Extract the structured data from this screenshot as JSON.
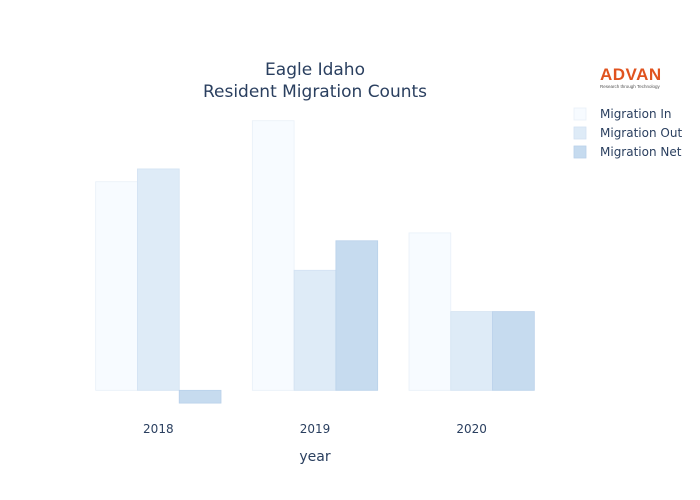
{
  "chart_data": {
    "type": "bar",
    "title_lines": [
      "Eagle Idaho",
      "Resident Migration Counts"
    ],
    "xlabel": "year",
    "ylabel": "",
    "categories": [
      "2018",
      "2019",
      "2020"
    ],
    "series": [
      {
        "name": "Migration In",
        "values": [
          212,
          274,
          160
        ],
        "color": "#f7fbff",
        "stroke": "#e8f0f8"
      },
      {
        "name": "Migration Out",
        "values": [
          225,
          122,
          80
        ],
        "color": "#deebf7",
        "stroke": "#d2e2f2"
      },
      {
        "name": "Migration Net",
        "values": [
          -13,
          152,
          80
        ],
        "color": "#c6dbef",
        "stroke": "#b9d1ea"
      }
    ],
    "ylim": [
      -20,
      290
    ],
    "grid": false,
    "legend_position": "top-right"
  },
  "logo": {
    "text": "ADVAN",
    "tagline": "Research through Technology",
    "color": "#e0531f"
  }
}
